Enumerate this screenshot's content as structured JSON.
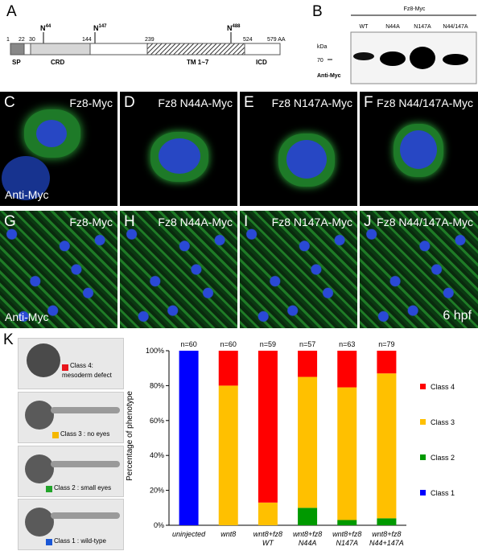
{
  "panelA": {
    "letter": "A",
    "residues_top": [
      "1",
      "22",
      "30",
      "144",
      "239",
      "524",
      "579 AA"
    ],
    "glyco_N44": "N",
    "glyco_N44_sup": "44",
    "glyco_N147": "N",
    "glyco_N147_sup": "147",
    "glyco_N488": "N",
    "glyco_N488_sup": "488",
    "domains": [
      "SP",
      "CRD",
      "TM 1~7",
      "ICD"
    ]
  },
  "panelB": {
    "letter": "B",
    "header": "Fz8-Myc",
    "lanes": [
      "WT",
      "N44A",
      "N147A",
      "N44/147A"
    ],
    "kda_label": "kDa",
    "marker": "70",
    "antibody": "Anti-Myc"
  },
  "row1": [
    {
      "letter": "C",
      "label": "Fz8-Myc",
      "sub": "Anti-Myc"
    },
    {
      "letter": "D",
      "label": "Fz8 N44A-Myc"
    },
    {
      "letter": "E",
      "label": "Fz8 N147A-Myc"
    },
    {
      "letter": "F",
      "label": "Fz8 N44/147A-Myc"
    }
  ],
  "row2": [
    {
      "letter": "G",
      "label": "Fz8-Myc",
      "sub": "Anti-Myc"
    },
    {
      "letter": "H",
      "label": "Fz8 N44A-Myc"
    },
    {
      "letter": "I",
      "label": "Fz8 N147A-Myc"
    },
    {
      "letter": "J",
      "label": "Fz8 N44/147A-Myc",
      "stage": "6 hpf"
    }
  ],
  "panelK": {
    "letter": "K",
    "class_images": [
      {
        "label": "Class 4:",
        "label2": "mesoderm defect",
        "color": "#e8141b"
      },
      {
        "label": "Class 3 : no eyes",
        "color": "#f5b800"
      },
      {
        "label": "Class 2 : small eyes",
        "color": "#22a42a"
      },
      {
        "label": "Class 1 : wild-type",
        "color": "#1a57d6"
      }
    ]
  },
  "chart_data": {
    "type": "bar",
    "stacked": true,
    "ylabel": "Percentage of phenotype",
    "yticks": [
      "0%",
      "20%",
      "40%",
      "60%",
      "80%",
      "100%"
    ],
    "ylim": [
      0,
      100
    ],
    "categories": [
      [
        "uninjected"
      ],
      [
        "wnt8"
      ],
      [
        "wnt8+fz8",
        "WT"
      ],
      [
        "wnt8+fz8",
        "N44A"
      ],
      [
        "wnt8+fz8",
        "N147A"
      ],
      [
        "wnt8+fz8",
        "N44+147A"
      ]
    ],
    "n_labels": [
      "n=60",
      "n=60",
      "n=59",
      "n=57",
      "n=63",
      "n=79"
    ],
    "series": [
      {
        "name": "Class 1",
        "color": "#0000ff",
        "values": [
          100,
          0,
          0,
          0,
          0,
          0
        ]
      },
      {
        "name": "Class 2",
        "color": "#009900",
        "values": [
          0,
          0,
          0,
          10,
          3,
          4
        ]
      },
      {
        "name": "Class 3",
        "color": "#ffc000",
        "values": [
          0,
          80,
          13,
          75,
          76,
          83
        ]
      },
      {
        "name": "Class 4",
        "color": "#ff0000",
        "values": [
          0,
          20,
          87,
          15,
          21,
          13
        ]
      }
    ],
    "legend_order": [
      "Class 4",
      "Class 3",
      "Class 2",
      "Class 1"
    ],
    "legend_position": "right"
  }
}
